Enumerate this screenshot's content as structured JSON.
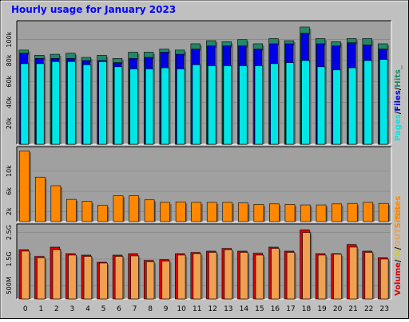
{
  "chart_data": [
    {
      "type": "bar",
      "title": "Hourly usage for January 2023",
      "panel": "hits_files_pages",
      "categories": [
        "0",
        "1",
        "2",
        "3",
        "4",
        "5",
        "6",
        "7",
        "8",
        "9",
        "10",
        "11",
        "12",
        "13",
        "14",
        "15",
        "16",
        "17",
        "18",
        "19",
        "20",
        "21",
        "22",
        "23"
      ],
      "ylabel_parts": [
        "Pages",
        "/",
        "Files",
        "/",
        "Hits",
        "_"
      ],
      "ylim": [
        0,
        115000
      ],
      "ticks": [
        20000,
        40000,
        60000,
        80000,
        100000
      ],
      "tick_labels": [
        "20k",
        "40k",
        "60k",
        "80k",
        "100k"
      ],
      "series": [
        {
          "name": "Hits",
          "values": [
            90000,
            85000,
            86000,
            87000,
            83000,
            85000,
            82000,
            88000,
            88000,
            91000,
            90000,
            96000,
            99000,
            98000,
            100000,
            96000,
            101000,
            99000,
            112000,
            101000,
            98000,
            101000,
            101000,
            96000
          ]
        },
        {
          "name": "Files",
          "values": [
            87000,
            82000,
            82000,
            82000,
            80000,
            80000,
            78000,
            82000,
            83000,
            88000,
            86000,
            91000,
            94000,
            94000,
            94000,
            91000,
            96000,
            96000,
            106000,
            96000,
            94000,
            97000,
            95000,
            91000
          ]
        },
        {
          "name": "Pages",
          "values": [
            77000,
            77000,
            79000,
            79000,
            76000,
            79000,
            74000,
            72000,
            72000,
            73000,
            72000,
            76000,
            75000,
            75000,
            75000,
            75000,
            77000,
            78000,
            80000,
            74000,
            71000,
            73000,
            80000,
            81000
          ]
        }
      ]
    },
    {
      "type": "bar",
      "panel": "sites",
      "categories": [
        "0",
        "1",
        "2",
        "3",
        "4",
        "5",
        "6",
        "7",
        "8",
        "9",
        "10",
        "11",
        "12",
        "13",
        "14",
        "15",
        "16",
        "17",
        "18",
        "19",
        "20",
        "21",
        "22",
        "23"
      ],
      "ylabel_parts": [
        "Sites"
      ],
      "ylim": [
        0,
        14200
      ],
      "ticks": [
        2000,
        6000,
        10000
      ],
      "tick_labels": [
        "2k",
        "6k",
        "10k"
      ],
      "series": [
        {
          "name": "Sites",
          "values": [
            14000,
            8800,
            7100,
            4400,
            4000,
            3200,
            5100,
            5100,
            4300,
            3800,
            3900,
            3800,
            3800,
            3800,
            3700,
            3400,
            3500,
            3400,
            3300,
            3300,
            3500,
            3600,
            3800,
            3600
          ]
        }
      ]
    },
    {
      "type": "bar",
      "panel": "volume",
      "categories": [
        "0",
        "1",
        "2",
        "3",
        "4",
        "5",
        "6",
        "7",
        "8",
        "9",
        "10",
        "11",
        "12",
        "13",
        "14",
        "15",
        "16",
        "17",
        "18",
        "19",
        "20",
        "21",
        "22",
        "23"
      ],
      "ylabel_parts": [
        "Volume",
        "/",
        "IN",
        "/",
        "OUT",
        "Sites"
      ],
      "ylim": [
        0,
        2700000
      ],
      "ticks": [
        500000,
        1500000,
        2500000
      ],
      "tick_labels": [
        "500M",
        "1.5G",
        "2.5G"
      ],
      "series": [
        {
          "name": "Volume",
          "values": [
            1850000,
            1600000,
            1950000,
            1700000,
            1650000,
            1380000,
            1650000,
            1700000,
            1450000,
            1480000,
            1700000,
            1750000,
            1800000,
            1900000,
            1800000,
            1720000,
            1950000,
            1800000,
            2600000,
            1700000,
            1700000,
            2050000,
            1800000,
            1550000
          ]
        },
        {
          "name": "OUT",
          "values": [
            1800000,
            1550000,
            1850000,
            1650000,
            1600000,
            1350000,
            1600000,
            1620000,
            1400000,
            1420000,
            1650000,
            1700000,
            1750000,
            1850000,
            1750000,
            1650000,
            1900000,
            1750000,
            2500000,
            1650000,
            1680000,
            1950000,
            1750000,
            1500000
          ]
        }
      ]
    }
  ],
  "colors": {
    "hits": "#228866",
    "files": "#0000e6",
    "pages": "#00e6e6",
    "sites": "#ff8800",
    "volume": "#dd0000",
    "out": "#f0a050",
    "in": "#cccc33",
    "frame": "#c0c0c0",
    "panel": "#a0a0a0",
    "grid": "#808080",
    "title": "#0000ff"
  }
}
